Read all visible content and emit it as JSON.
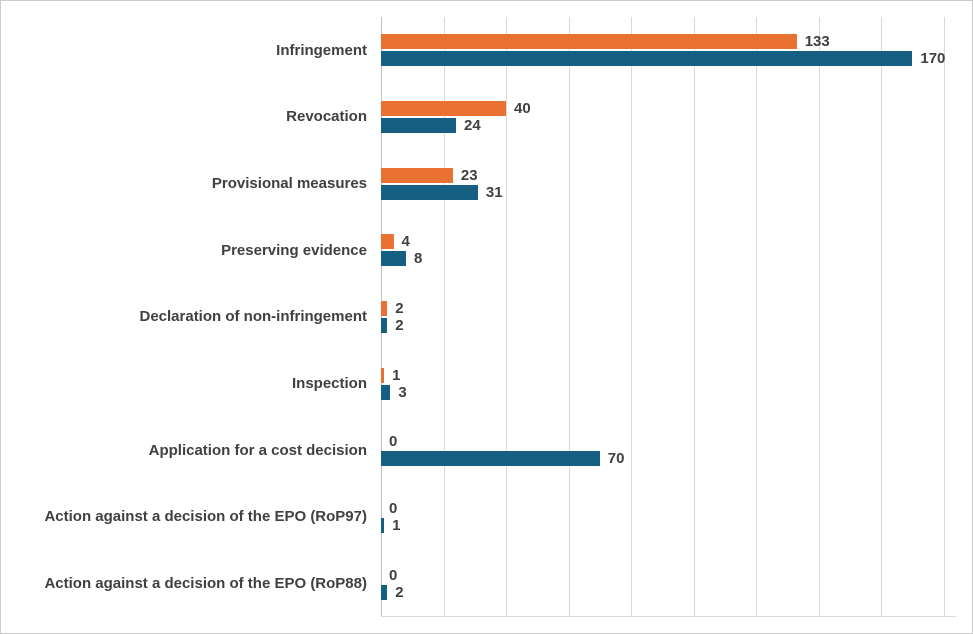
{
  "chart_data": {
    "type": "bar",
    "orientation": "horizontal",
    "title": "",
    "xlabel": "",
    "ylabel": "",
    "legend": "none",
    "grid": "vertical",
    "value_labels": true,
    "xlim": [
      0,
      180
    ],
    "grid_step": 20,
    "categories": [
      "Infringement",
      "Revocation",
      "Provisional measures",
      "Preserving evidence",
      "Declaration of non-infringement",
      "Inspection",
      "Application for a cost decision",
      "Action against a decision of the EPO (RoP97)",
      "Action against a decision of the EPO (RoP88)"
    ],
    "series": [
      {
        "name": "orange-series",
        "color": "#E97132",
        "values": [
          133,
          40,
          23,
          4,
          2,
          1,
          0,
          0,
          0
        ]
      },
      {
        "name": "blue-series",
        "color": "#156082",
        "values": [
          170,
          24,
          31,
          8,
          2,
          3,
          70,
          1,
          2
        ]
      }
    ]
  },
  "colors": {
    "text": "#404040",
    "gridline": "#D9D9D9",
    "axis": "#BFBFBF",
    "border": "#CBCBCB",
    "background": "#FFFFFF"
  }
}
